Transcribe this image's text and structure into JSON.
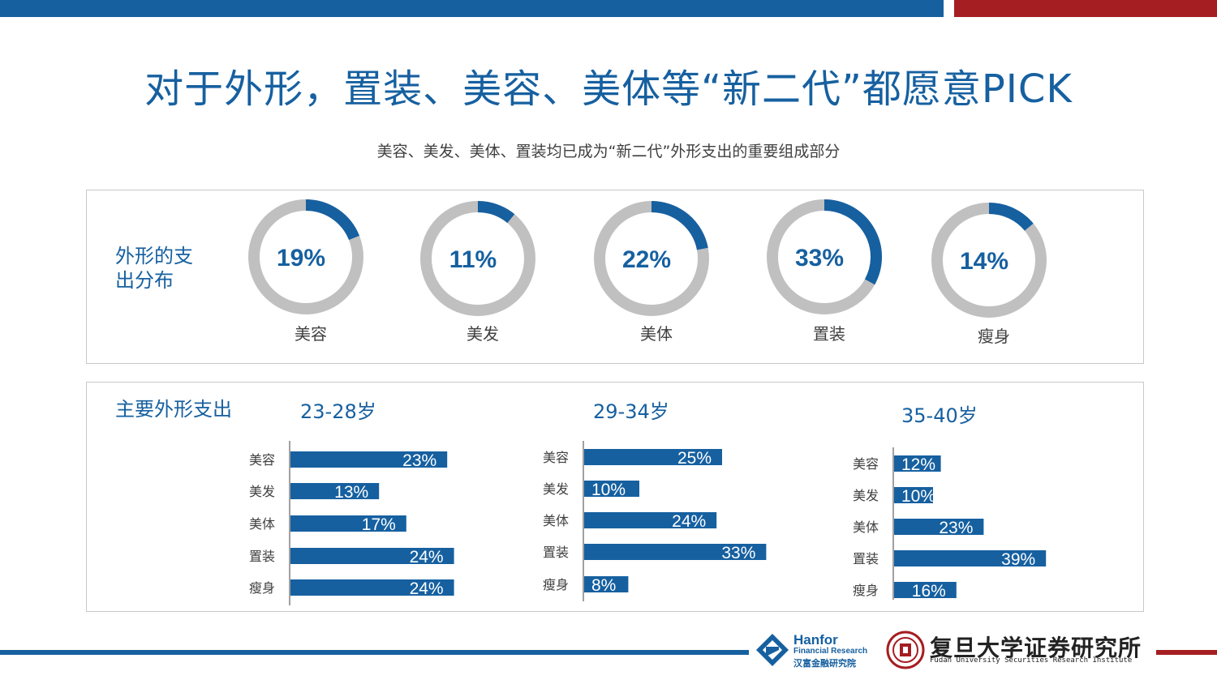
{
  "header": {
    "title": "对于外形，置装、美容、美体等“新二代”都愿意PICK",
    "subtitle": "美容、美发、美体、置装均已成为“新二代”外形支出的重要组成部分"
  },
  "colors": {
    "primary": "#1660a0",
    "accent": "#a51e22",
    "track": "#c0c0c0"
  },
  "top_panel": {
    "label": "外形的支出分布"
  },
  "bottom_panel": {
    "label": "主要外形支出"
  },
  "chart_data": [
    {
      "type": "pie",
      "title": "外形的支出分布",
      "style": "donut",
      "categories": [
        "美容",
        "美发",
        "美体",
        "置装",
        "瘦身"
      ],
      "values": [
        19,
        11,
        22,
        33,
        14
      ],
      "labels": [
        "19%",
        "11%",
        "22%",
        "33%",
        "14%"
      ]
    },
    {
      "type": "bar",
      "orientation": "horizontal",
      "title": "23-28岁",
      "categories": [
        "美容",
        "美发",
        "美体",
        "置装",
        "瘦身"
      ],
      "values": [
        23,
        13,
        17,
        24,
        24
      ],
      "labels": [
        "23%",
        "13%",
        "17%",
        "24%",
        "24%"
      ]
    },
    {
      "type": "bar",
      "orientation": "horizontal",
      "title": "29-34岁",
      "categories": [
        "美容",
        "美发",
        "美体",
        "置装",
        "瘦身"
      ],
      "values": [
        25,
        10,
        24,
        33,
        8
      ],
      "labels": [
        "25%",
        "10%",
        "24%",
        "33%",
        "8%"
      ]
    },
    {
      "type": "bar",
      "orientation": "horizontal",
      "title": "35-40岁",
      "categories": [
        "美容",
        "美发",
        "美体",
        "置装",
        "瘦身"
      ],
      "values": [
        12,
        10,
        23,
        39,
        16
      ],
      "labels": [
        "12%",
        "10%",
        "23%",
        "39%",
        "16%"
      ]
    }
  ],
  "footer": {
    "hanfor_name": "Hanfor",
    "hanfor_sub": "Financial Research",
    "hanfor_cn": "汉富金融研究院",
    "fudan_cn": "复旦大学证券研究所",
    "fudan_en": "Fudan University Securities Research Institute"
  }
}
